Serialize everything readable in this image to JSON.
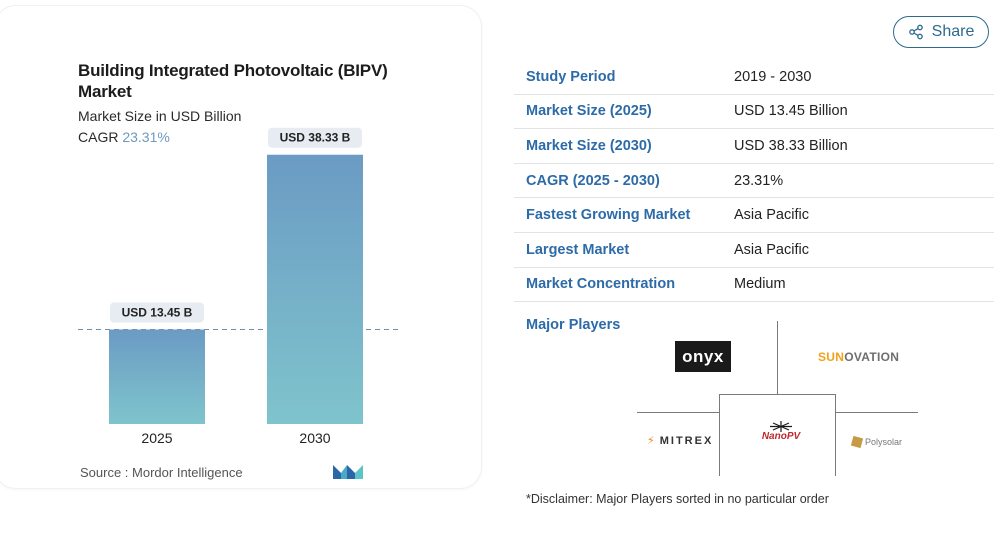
{
  "chart_data": {
    "type": "bar",
    "title": "Building Integrated Photovoltaic (BIPV) Market",
    "subtitle": "Market Size in USD Billion",
    "cagr_label": "CAGR",
    "cagr_value": "23.31%",
    "categories": [
      "2025",
      "2030"
    ],
    "values": [
      13.45,
      38.33
    ],
    "data_labels": [
      "USD 13.45 B",
      "USD 38.33 B"
    ],
    "ylim": [
      0,
      40
    ],
    "reference_line": 13.45,
    "grid": false,
    "colors": {
      "bar_top": "#6b9bc4",
      "bar_bottom": "#7fc4cc",
      "label_bg": "#e6ecf1",
      "dash": "#6f8fb0"
    }
  },
  "source": {
    "label": "Source :",
    "name": "Mordor Intelligence"
  },
  "share": {
    "label": "Share",
    "icon": "share-icon"
  },
  "info": [
    {
      "key": "Study Period",
      "value": "2019 - 2030"
    },
    {
      "key": "Market Size (2025)",
      "value": "USD 13.45 Billion"
    },
    {
      "key": "Market Size (2030)",
      "value": "USD 38.33 Billion"
    },
    {
      "key": "CAGR (2025 - 2030)",
      "value": "23.31%"
    },
    {
      "key": "Fastest Growing Market",
      "value": "Asia Pacific"
    },
    {
      "key": "Largest Market",
      "value": "Asia Pacific"
    },
    {
      "key": "Market Concentration",
      "value": "Medium"
    }
  ],
  "major_players": {
    "label": "Major Players",
    "players": {
      "onyx": "onyx",
      "sunovation_a": "SUN",
      "sunovation_b": "OVATION",
      "mitrex": "MITREX",
      "nanopv": "NanoPV",
      "polysolar": "Polysolar"
    }
  },
  "disclaimer": "*Disclaimer: Major Players sorted in no particular order"
}
